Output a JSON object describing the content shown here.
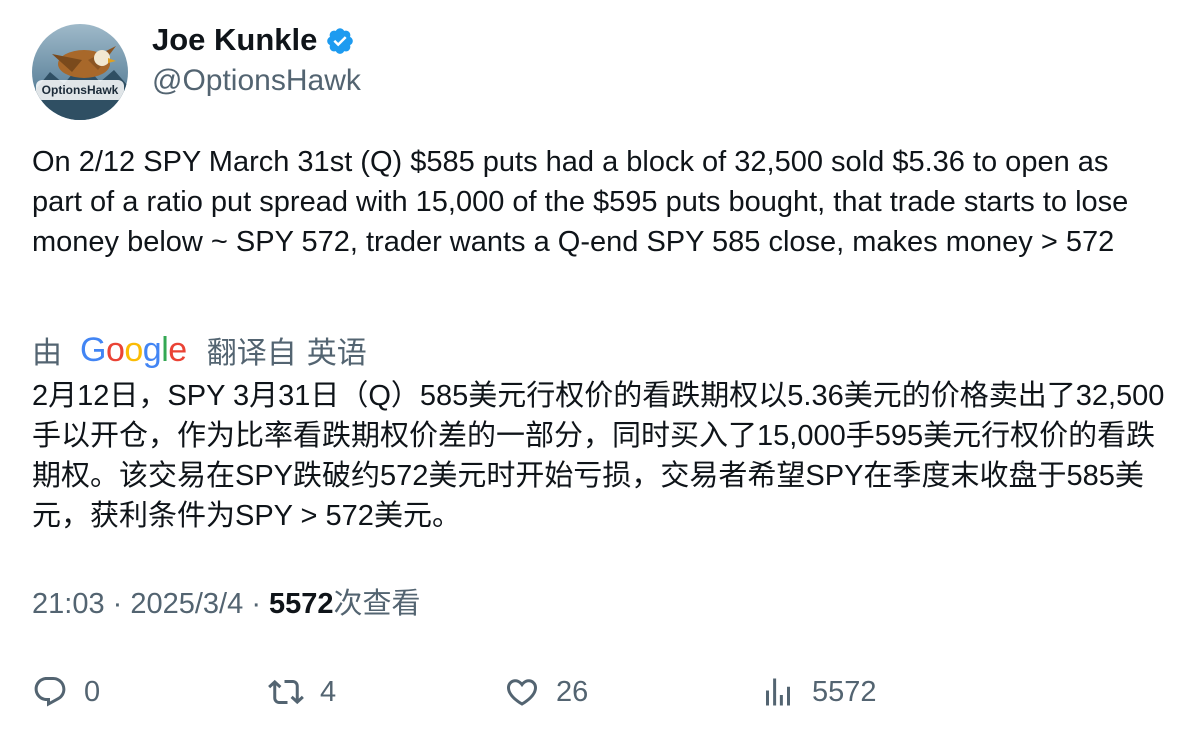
{
  "author": {
    "display_name": "Joe Kunkle",
    "handle": "@OptionsHawk",
    "verified": true,
    "avatar_text": "OptionsHawk"
  },
  "tweet": {
    "text": "On 2/12 SPY March 31st (Q) $585 puts had a block of 32,500 sold $5.36 to open as part of a ratio put spread with 15,000 of the $595 puts bought, that trade starts to lose money below ~ SPY 572, trader wants a Q-end SPY 585 close, makes money > 572"
  },
  "translation": {
    "by_label": "由",
    "provider": "Google",
    "from_label": "翻译自",
    "language": "英语",
    "text": "2月12日，SPY 3月31日（Q）585美元行权价的看跌期权以5.36美元的价格卖出了32,500手以开仓，作为比率看跌期权价差的一部分，同时买入了15,000手595美元行权价的看跌期权。该交易在SPY跌破约572美元时开始亏损，交易者希望SPY在季度末收盘于585美元，获利条件为SPY > 572美元。"
  },
  "meta": {
    "time": "21:03",
    "separator": "·",
    "date": "2025/3/4",
    "views_count": "5572",
    "views_label": "次查看"
  },
  "actions": {
    "replies": "0",
    "retweets": "4",
    "likes": "26",
    "views": "5572"
  },
  "colors": {
    "text": "#0f1419",
    "secondary": "#536471",
    "verified": "#1d9bf0"
  }
}
